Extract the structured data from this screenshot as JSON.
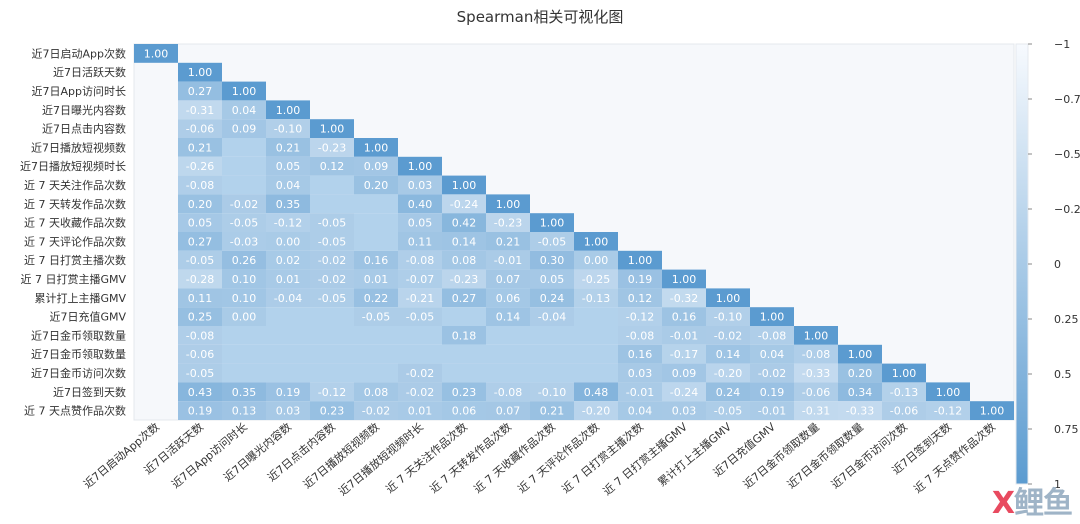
{
  "chart_data": {
    "type": "heatmap",
    "title": "Spearman相关可视化图",
    "labels": [
      "近7日启动App次数",
      "近7日活跃天数",
      "近7日App访问时长",
      "近7日曝光内容数",
      "近7日点击内容数",
      "近7日播放短视频数",
      "近7日播放短视频时长",
      "近 7 天关注作品次数",
      "近 7 天转发作品次数",
      "近 7 天收藏作品次数",
      "近 7 天评论作品次数",
      "近 7 日打赏主播次数",
      "近 7 日打赏主播GMV",
      "累计打上主播GMV",
      "近7日充值GMV",
      "近7日金币领取数量",
      "近7日金币领取数量",
      "近7日金币访问次数",
      "近7日签到天数",
      "近 7 天点赞作品次数"
    ],
    "lower_triangle": [
      [
        1.0
      ],
      [
        null,
        1.0
      ],
      [
        null,
        0.27,
        1.0
      ],
      [
        null,
        -0.31,
        0.04,
        1.0
      ],
      [
        null,
        -0.06,
        0.09,
        -0.1,
        1.0
      ],
      [
        null,
        0.21,
        null,
        0.21,
        -0.23,
        1.0
      ],
      [
        null,
        -0.26,
        null,
        0.05,
        0.12,
        0.09,
        1.0
      ],
      [
        null,
        -0.08,
        null,
        0.04,
        null,
        0.2,
        0.03,
        1.0
      ],
      [
        null,
        0.2,
        -0.02,
        0.35,
        null,
        null,
        0.4,
        -0.24,
        1.0
      ],
      [
        null,
        0.05,
        -0.05,
        -0.12,
        -0.05,
        null,
        0.05,
        0.42,
        -0.23,
        1.0
      ],
      [
        null,
        0.27,
        -0.03,
        0.0,
        -0.05,
        null,
        0.11,
        0.14,
        0.21,
        -0.05,
        1.0
      ],
      [
        null,
        -0.05,
        0.26,
        0.02,
        -0.02,
        0.16,
        -0.08,
        0.08,
        -0.01,
        0.3,
        0.0,
        1.0
      ],
      [
        null,
        -0.28,
        0.1,
        0.01,
        -0.02,
        0.01,
        -0.07,
        -0.23,
        0.07,
        0.05,
        -0.25,
        0.19,
        1.0
      ],
      [
        null,
        0.11,
        0.1,
        -0.04,
        -0.05,
        0.22,
        -0.21,
        0.27,
        0.06,
        0.24,
        -0.13,
        0.12,
        -0.32,
        1.0
      ],
      [
        null,
        0.25,
        0.0,
        null,
        null,
        -0.05,
        -0.05,
        null,
        0.14,
        -0.04,
        null,
        -0.12,
        0.16,
        -0.1,
        1.0
      ],
      [
        null,
        -0.08,
        null,
        null,
        null,
        null,
        null,
        0.18,
        null,
        null,
        null,
        -0.08,
        -0.01,
        -0.02,
        -0.08,
        1.0
      ],
      [
        null,
        -0.06,
        null,
        null,
        null,
        null,
        null,
        null,
        null,
        null,
        null,
        0.16,
        -0.17,
        0.14,
        0.04,
        -0.08,
        1.0
      ],
      [
        null,
        -0.05,
        null,
        null,
        null,
        null,
        -0.02,
        null,
        null,
        null,
        null,
        0.03,
        0.09,
        -0.2,
        -0.02,
        -0.33,
        0.2,
        1.0
      ],
      [
        null,
        0.43,
        0.35,
        0.19,
        -0.12,
        0.08,
        -0.02,
        0.23,
        -0.08,
        -0.1,
        0.48,
        -0.01,
        -0.24,
        0.24,
        0.19,
        -0.06,
        0.34,
        -0.13,
        1.0
      ],
      [
        null,
        0.19,
        0.13,
        0.03,
        0.23,
        -0.02,
        0.01,
        0.06,
        0.07,
        0.21,
        -0.2,
        0.04,
        0.03,
        -0.05,
        -0.01,
        -0.31,
        -0.33,
        -0.06,
        -0.12,
        1.0
      ]
    ],
    "colorbar": {
      "ticks": [
        "−1",
        "−0.75",
        "−0.5",
        "−0.25",
        "0",
        "0.25",
        "0.5",
        "0.75",
        "1"
      ],
      "tick_values": [
        -1,
        -0.75,
        -0.5,
        -0.25,
        0,
        0.25,
        0.5,
        0.75,
        1
      ],
      "range": [
        -1,
        1
      ],
      "low_color": "#f7fafe",
      "high_color": "#5b9bd0"
    },
    "diagonal_color": "#5b9bd0"
  },
  "watermark": {
    "part1": "X",
    "part2": "鲤",
    "part3": "鱼"
  }
}
